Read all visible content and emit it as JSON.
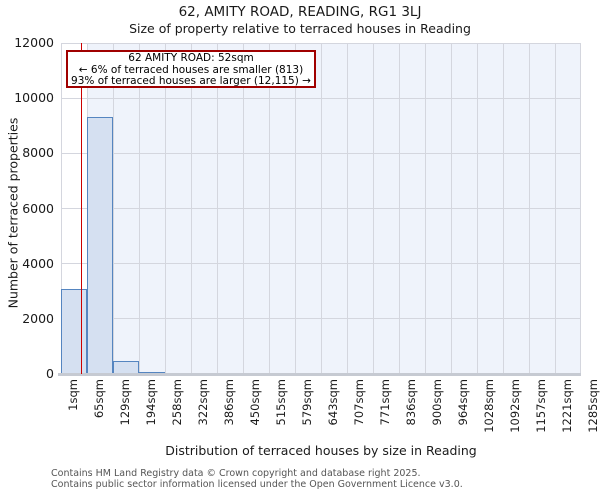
{
  "title": "62, AMITY ROAD, READING, RG1 3LJ",
  "subtitle": "Size of property relative to terraced houses in Reading",
  "annotation": {
    "line1": "62 AMITY ROAD: 52sqm",
    "line2": "← 6% of terraced houses are smaller (813)",
    "line3": "93% of terraced houses are larger (12,115) →"
  },
  "chart_data": {
    "type": "bar",
    "title": "62, AMITY ROAD, READING, RG1 3LJ — Size of property relative to terraced houses in Reading",
    "xlabel": "Distribution of terraced houses by size in Reading",
    "ylabel": "Number of terraced properties",
    "x_tick_labels": [
      "1sqm",
      "65sqm",
      "129sqm",
      "194sqm",
      "258sqm",
      "322sqm",
      "386sqm",
      "450sqm",
      "515sqm",
      "579sqm",
      "643sqm",
      "707sqm",
      "771sqm",
      "836sqm",
      "900sqm",
      "964sqm",
      "1028sqm",
      "1092sqm",
      "1157sqm",
      "1221sqm",
      "1285sqm"
    ],
    "bin_edges_sqm": [
      1,
      65,
      129,
      194,
      258,
      322,
      386,
      450,
      515,
      579,
      643,
      707,
      771,
      836,
      900,
      964,
      1028,
      1092,
      1157,
      1221,
      1285
    ],
    "values": [
      3100,
      9300,
      460,
      50,
      0,
      0,
      0,
      0,
      0,
      0,
      0,
      0,
      0,
      0,
      0,
      0,
      0,
      0,
      0,
      0
    ],
    "y_ticks": [
      0,
      2000,
      4000,
      6000,
      8000,
      10000,
      12000
    ],
    "ylim": [
      0,
      12000
    ],
    "xlim_sqm": [
      1,
      1285
    ],
    "grid": true,
    "legend": "none",
    "marker_value_sqm": 52,
    "highlighted_bin_index": 0,
    "smaller_count": 813,
    "smaller_pct": 6,
    "larger_count": 12115,
    "larger_pct": 93
  },
  "colors": {
    "bar_fill": "#d5e0f1",
    "bar_border": "#5585c0",
    "marker_red": "#cc0000",
    "annotation_border": "#a00000",
    "plot_bg_zone": "#eff3fb",
    "grid": "#d4d6de",
    "axis_line": "#c6cad2"
  },
  "footer": {
    "line1": "Contains HM Land Registry data © Crown copyright and database right 2025.",
    "line2": "Contains public sector information licensed under the Open Government Licence v3.0."
  }
}
